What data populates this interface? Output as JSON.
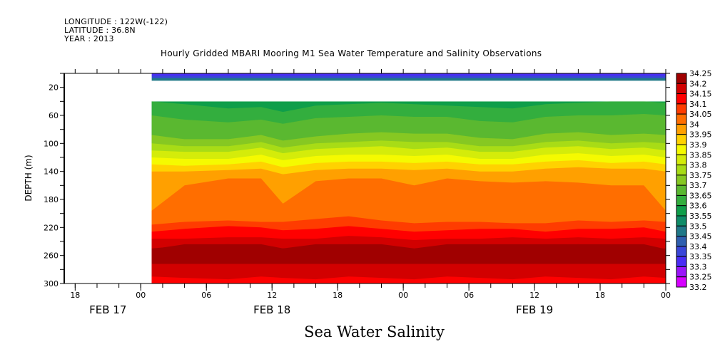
{
  "header": {
    "longitude": "LONGITUDE : 122W(-122)",
    "latitude": "LATITUDE : 36.8N",
    "year": "YEAR : 2013"
  },
  "title": "Hourly Gridded MBARI Mooring M1 Sea Water Temperature and Salinity Observations",
  "bottom_title": "Sea Water Salinity",
  "chart_data": {
    "type": "heatmap",
    "subtype": "filled-contour depth-time section",
    "title": "Hourly Gridded MBARI Mooring M1 Sea Water Temperature and Salinity Observations",
    "variable": "Sea Water Salinity",
    "ylabel": "DEPTH (m)",
    "xlabel": "",
    "y_axis_inverted": true,
    "ylim": [
      300,
      0
    ],
    "y_ticks": [
      20,
      60,
      100,
      140,
      180,
      220,
      260,
      300
    ],
    "x_range_hours": [
      -7,
      48
    ],
    "x_ticks": [
      {
        "hour": -6,
        "label": "18"
      },
      {
        "hour": 0,
        "label": "00"
      },
      {
        "hour": 6,
        "label": "06"
      },
      {
        "hour": 12,
        "label": "12"
      },
      {
        "hour": 18,
        "label": "18"
      },
      {
        "hour": 24,
        "label": "00"
      },
      {
        "hour": 30,
        "label": "06"
      },
      {
        "hour": 36,
        "label": "12"
      },
      {
        "hour": 42,
        "label": "18"
      },
      {
        "hour": 48,
        "label": "00"
      }
    ],
    "x_date_labels": [
      {
        "hour": -3,
        "label": "FEB 17"
      },
      {
        "hour": 12,
        "label": "FEB 18"
      },
      {
        "hour": 36,
        "label": "FEB 19"
      }
    ],
    "data_start_hour": 1,
    "data_end_hour": 48,
    "missing_depth_band_m": [
      10,
      40
    ],
    "surface_band": {
      "depth_range_m": [
        0,
        10
      ],
      "values": [
        33.3,
        33.35,
        33.45
      ]
    },
    "legend": {
      "placement": "right",
      "levels": [
        33.2,
        33.25,
        33.3,
        33.35,
        33.4,
        33.45,
        33.5,
        33.55,
        33.6,
        33.65,
        33.7,
        33.75,
        33.8,
        33.85,
        33.9,
        33.95,
        34.0,
        34.05,
        34.1,
        34.15,
        34.2,
        34.25
      ],
      "labels": [
        "34.25",
        "34.2",
        "34.15",
        "34.1",
        "34.05",
        "34",
        "33.95",
        "33.9",
        "33.85",
        "33.8",
        "33.75",
        "33.7",
        "33.65",
        "33.6",
        "33.55",
        "33.5",
        "33.45",
        "33.4",
        "33.35",
        "33.3",
        "33.25",
        "33.2"
      ],
      "colors": [
        "#d600ff",
        "#9a14fa",
        "#4a2cf5",
        "#3a46d8",
        "#2f5faf",
        "#207888",
        "#0f8c68",
        "#0f9e4a",
        "#33ae3e",
        "#5ab830",
        "#86c822",
        "#a8dc16",
        "#d4ec0a",
        "#f5fa00",
        "#ffd200",
        "#ffa000",
        "#ff6e00",
        "#ff3c00",
        "#ff0000",
        "#d20000",
        "#a00000"
      ]
    },
    "contour_profile_description": "Salinity increases with depth: ~33.55 at 40 m, ~33.9 at 130 m, ~34.0 at 150-200 m, maximum ~34.25 near 250 m, decreasing to ~34.1 at 300 m",
    "isoline_depths": {
      "hours": [
        1,
        4,
        8,
        11,
        13,
        16,
        19,
        22,
        25,
        28,
        31,
        34,
        37,
        40,
        43,
        46,
        48
      ],
      "levels": [
        33.6,
        33.65,
        33.7,
        33.75,
        33.8,
        33.85,
        33.9,
        33.95,
        34.0,
        34.05,
        34.1,
        34.15,
        34.2
      ],
      "depths": [
        [
          40,
          44,
          50,
          48,
          55,
          46,
          44,
          42,
          44,
          46,
          48,
          50,
          44,
          42,
          40,
          40,
          42
        ],
        [
          60,
          66,
          70,
          66,
          72,
          64,
          62,
          60,
          62,
          62,
          68,
          70,
          62,
          60,
          60,
          58,
          60
        ],
        [
          88,
          94,
          94,
          88,
          96,
          90,
          86,
          84,
          86,
          86,
          92,
          94,
          86,
          84,
          88,
          86,
          88
        ],
        [
          100,
          104,
          104,
          98,
          106,
          100,
          98,
          96,
          98,
          98,
          104,
          104,
          98,
          96,
          100,
          98,
          100
        ],
        [
          110,
          112,
          112,
          106,
          114,
          108,
          106,
          104,
          108,
          106,
          112,
          112,
          106,
          104,
          108,
          106,
          110
        ],
        [
          120,
          122,
          122,
          116,
          124,
          118,
          116,
          116,
          118,
          116,
          122,
          122,
          116,
          114,
          118,
          116,
          120
        ],
        [
          130,
          132,
          130,
          126,
          134,
          128,
          126,
          126,
          128,
          126,
          130,
          130,
          126,
          124,
          128,
          126,
          130
        ],
        [
          140,
          140,
          138,
          136,
          144,
          138,
          136,
          136,
          138,
          136,
          140,
          140,
          136,
          134,
          136,
          136,
          140
        ],
        [
          196,
          160,
          150,
          150,
          186,
          154,
          150,
          150,
          160,
          150,
          154,
          156,
          154,
          156,
          160,
          160,
          196
        ],
        [
          216,
          212,
          210,
          212,
          212,
          208,
          204,
          210,
          214,
          212,
          212,
          214,
          214,
          210,
          212,
          210,
          212
        ],
        [
          226,
          222,
          218,
          220,
          224,
          222,
          218,
          222,
          226,
          224,
          222,
          222,
          226,
          222,
          222,
          220,
          226
        ],
        [
          236,
          236,
          234,
          234,
          236,
          236,
          232,
          234,
          238,
          236,
          236,
          234,
          236,
          234,
          236,
          234,
          236
        ],
        [
          250,
          246,
          244,
          246,
          250,
          248,
          244,
          246,
          252,
          246,
          246,
          246,
          248,
          244,
          248,
          250,
          250
        ]
      ],
      "deep_isolines": {
        "levels": [
          34.25,
          34.2,
          34.15
        ],
        "note": "34.25 core lens between ~244-258 m; 34.2 lower bound ~272 m; 34.15 lower bound ~292 m"
      }
    }
  }
}
